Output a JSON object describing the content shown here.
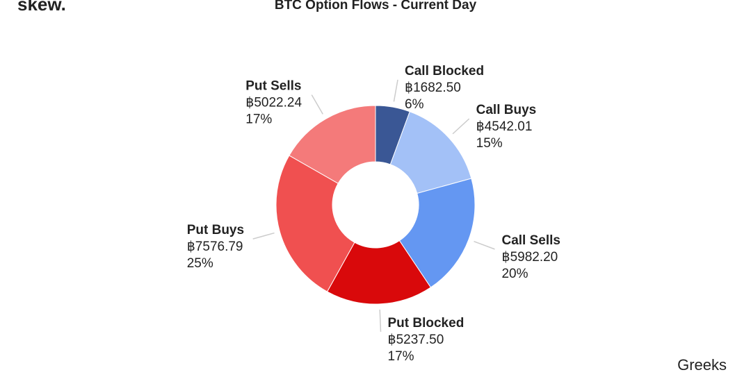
{
  "logo": "skew.",
  "watermark": "Greeks",
  "chart_data": {
    "type": "donut",
    "title": "BTC Option Flows - Current Day",
    "categories": [
      "Call Blocked",
      "Call Buys",
      "Call Sells",
      "Put Blocked",
      "Put Buys",
      "Put Sells"
    ],
    "values": [
      1682.5,
      4542.01,
      5982.2,
      5237.5,
      7576.79,
      5022.24
    ],
    "value_labels": [
      "฿1682.50",
      "฿4542.01",
      "฿5982.20",
      "฿5237.50",
      "฿7576.79",
      "฿5022.24"
    ],
    "percent_labels": [
      "6%",
      "15%",
      "20%",
      "17%",
      "25%",
      "17%"
    ],
    "colors": [
      "#3a5795",
      "#a3c1f7",
      "#6497f2",
      "#d9090b",
      "#f05050",
      "#f47a7a"
    ]
  }
}
